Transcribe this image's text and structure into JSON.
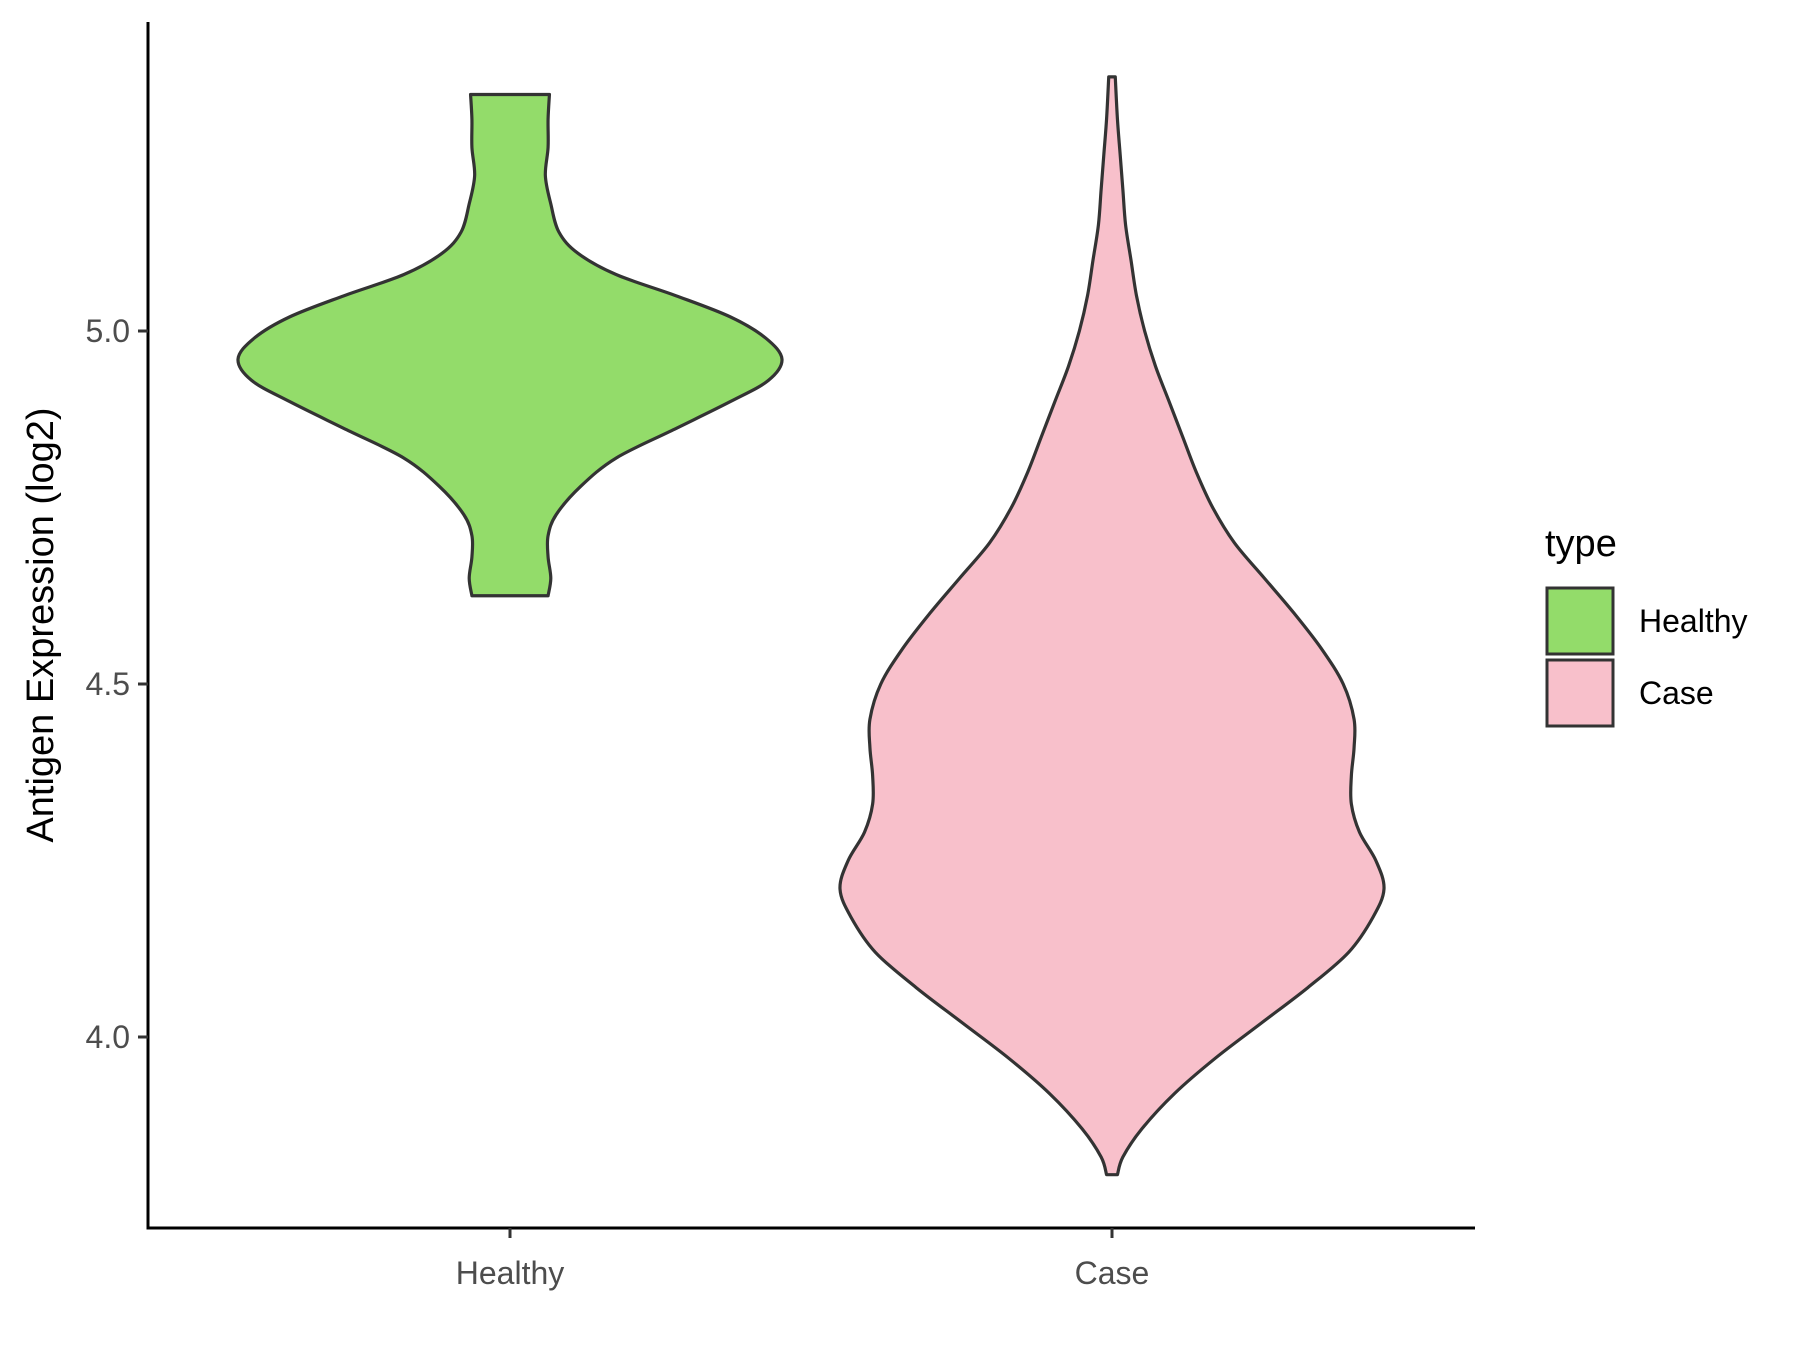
{
  "chart_data": {
    "type": "violin",
    "ylabel": "Antigen Expression (log2)",
    "xlabel": "",
    "ylim": [
      3.73,
      5.43
    ],
    "yticks": [
      4.0,
      4.5,
      5.0
    ],
    "ytick_labels": [
      "4.0",
      "4.5",
      "5.0"
    ],
    "categories": [
      "Healthy",
      "Case"
    ],
    "legend": {
      "title": "type",
      "placement": "right",
      "items": [
        {
          "label": "Healthy",
          "color": "#93dc6a"
        },
        {
          "label": "Case",
          "color": "#f8c0cb"
        }
      ]
    },
    "series": [
      {
        "name": "Healthy",
        "color": "#93dc6a",
        "y_range": [
          4.625,
          5.335
        ],
        "density_profile": [
          [
            4.625,
            0.14
          ],
          [
            4.65,
            0.15
          ],
          [
            4.68,
            0.14
          ],
          [
            4.71,
            0.14
          ],
          [
            4.74,
            0.17
          ],
          [
            4.78,
            0.26
          ],
          [
            4.82,
            0.39
          ],
          [
            4.86,
            0.6
          ],
          [
            4.9,
            0.81
          ],
          [
            4.93,
            0.95
          ],
          [
            4.96,
            1.0
          ],
          [
            4.99,
            0.94
          ],
          [
            5.02,
            0.81
          ],
          [
            5.05,
            0.61
          ],
          [
            5.08,
            0.39
          ],
          [
            5.11,
            0.25
          ],
          [
            5.14,
            0.18
          ],
          [
            5.18,
            0.15
          ],
          [
            5.22,
            0.13
          ],
          [
            5.26,
            0.14
          ],
          [
            5.3,
            0.14
          ],
          [
            5.335,
            0.145
          ]
        ]
      },
      {
        "name": "Case",
        "color": "#f8c0cb",
        "y_range": [
          3.805,
          5.36
        ],
        "density_profile": [
          [
            3.805,
            0.02
          ],
          [
            3.83,
            0.04
          ],
          [
            3.87,
            0.11
          ],
          [
            3.92,
            0.23
          ],
          [
            3.97,
            0.38
          ],
          [
            4.02,
            0.55
          ],
          [
            4.07,
            0.72
          ],
          [
            4.12,
            0.87
          ],
          [
            4.17,
            0.96
          ],
          [
            4.21,
            1.0
          ],
          [
            4.25,
            0.97
          ],
          [
            4.29,
            0.91
          ],
          [
            4.33,
            0.88
          ],
          [
            4.37,
            0.88
          ],
          [
            4.41,
            0.89
          ],
          [
            4.45,
            0.89
          ],
          [
            4.5,
            0.85
          ],
          [
            4.55,
            0.77
          ],
          [
            4.6,
            0.67
          ],
          [
            4.65,
            0.56
          ],
          [
            4.7,
            0.45
          ],
          [
            4.75,
            0.37
          ],
          [
            4.8,
            0.31
          ],
          [
            4.85,
            0.26
          ],
          [
            4.9,
            0.21
          ],
          [
            4.95,
            0.16
          ],
          [
            5.0,
            0.12
          ],
          [
            5.05,
            0.09
          ],
          [
            5.1,
            0.07
          ],
          [
            5.15,
            0.05
          ],
          [
            5.2,
            0.04
          ],
          [
            5.25,
            0.03
          ],
          [
            5.3,
            0.02
          ],
          [
            5.36,
            0.012
          ]
        ]
      }
    ],
    "grid": false
  }
}
